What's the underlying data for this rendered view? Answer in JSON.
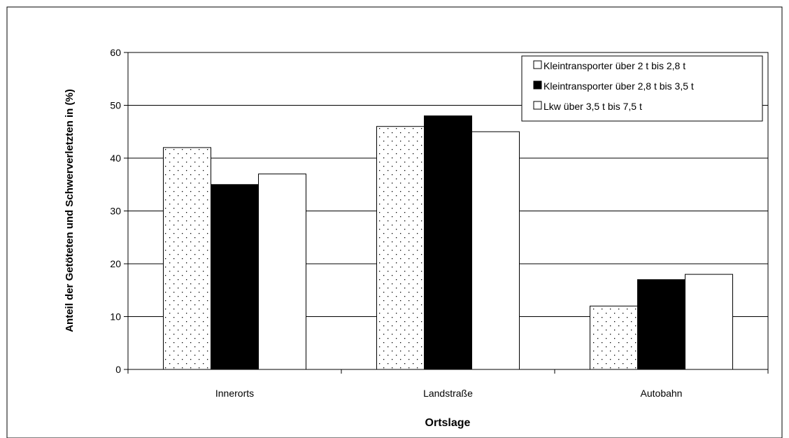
{
  "chart_data": {
    "type": "bar",
    "xlabel": "Ortslage",
    "ylabel": "Anteil der Getöteten und Schwerverletzten in (%)",
    "categories": [
      "Innerorts",
      "Landstraße",
      "Autobahn"
    ],
    "ylim": [
      0,
      60
    ],
    "yticks": [
      0,
      10,
      20,
      30,
      40,
      50,
      60
    ],
    "grid": true,
    "legend_position": "top-right",
    "series": [
      {
        "name": "Kleintransporter über 2 t bis 2,8 t",
        "values": [
          42,
          46,
          12
        ],
        "fill": "dotted"
      },
      {
        "name": "Kleintransporter über 2,8 t bis 3,5 t",
        "values": [
          35,
          48,
          17
        ],
        "fill": "#000000"
      },
      {
        "name": "Lkw über 3,5 t bis 7,5 t",
        "values": [
          37,
          45,
          18
        ],
        "fill": "#ffffff"
      }
    ]
  }
}
